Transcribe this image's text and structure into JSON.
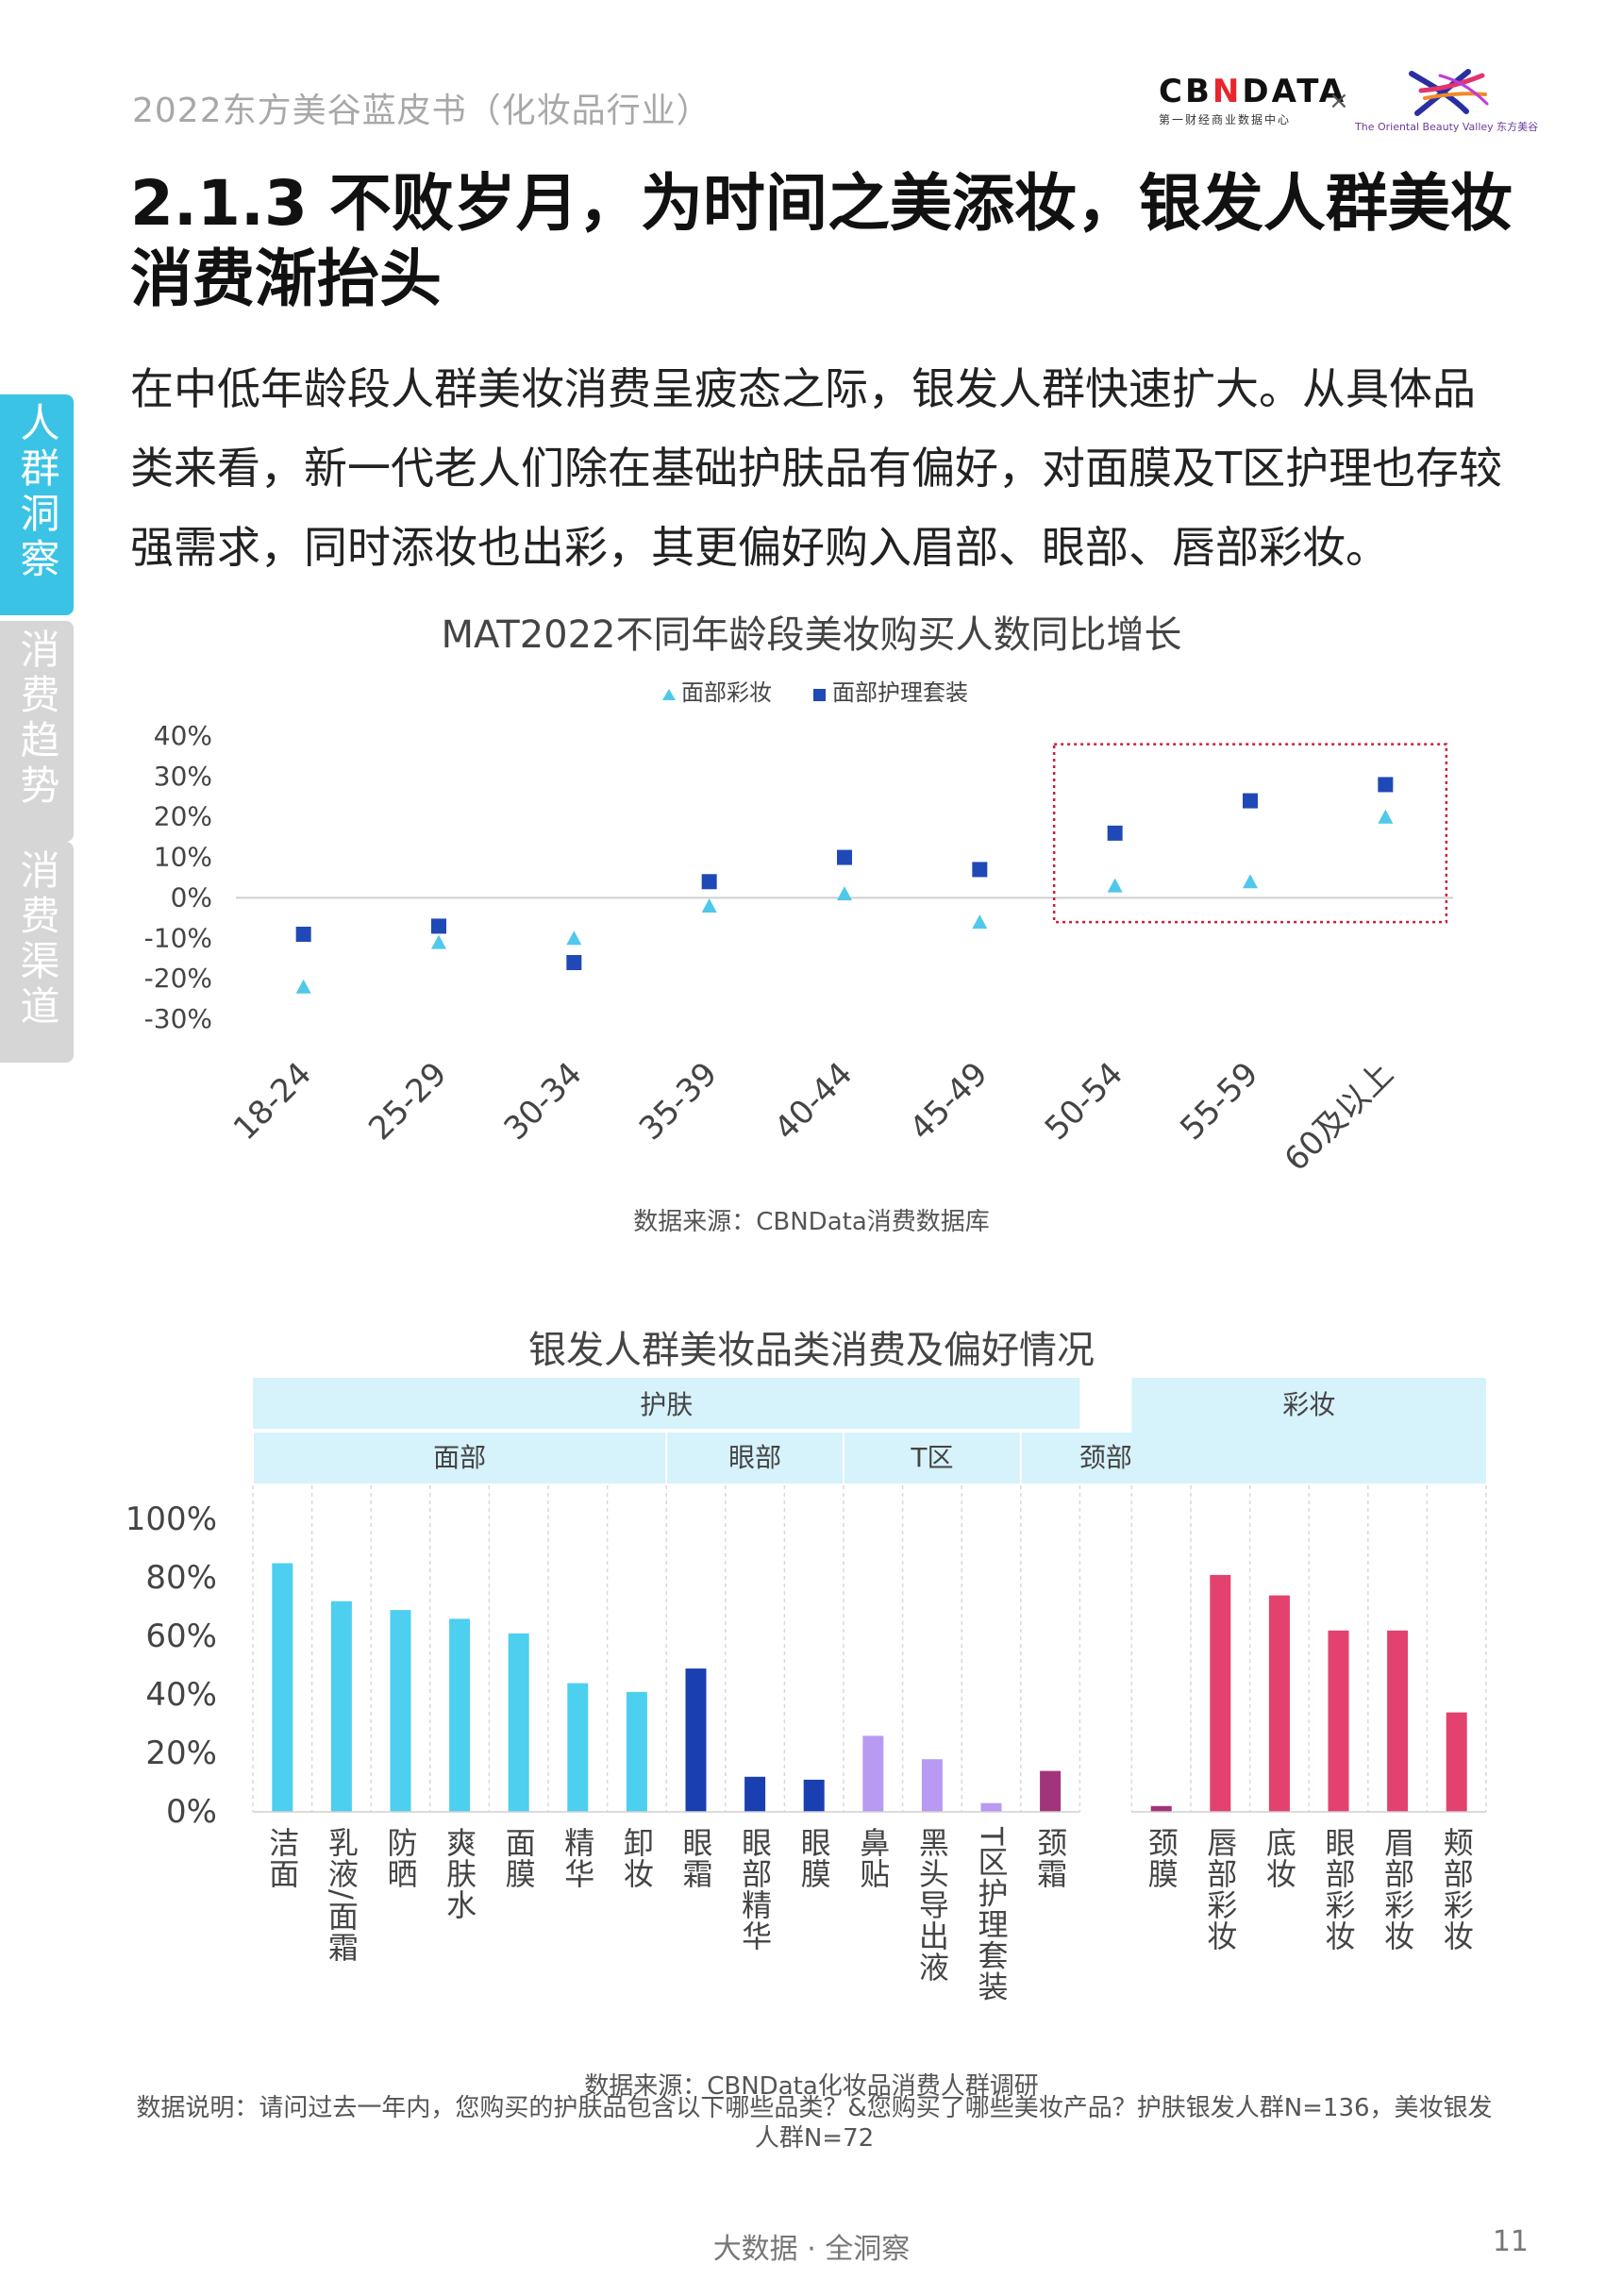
{
  "header": {
    "title": "2022东方美谷蓝皮书（化妆品行业）",
    "logo_cbn_word_a": "CB",
    "logo_cbn_word_x": "N",
    "logo_cbn_word_b": "DATA",
    "logo_cbn_sub": "第一财经商业数据中心",
    "logo_times": "×",
    "logo_dfmg_text": "The Oriental Beauty Valley 东方美谷"
  },
  "side_tabs": [
    {
      "label": "人群洞察",
      "active": true
    },
    {
      "label": "消费趋势",
      "active": false
    },
    {
      "label": "消费渠道",
      "active": false
    }
  ],
  "page_title": "2.1.3 不败岁月，为时间之美添妆，银发人群美妆消费渐抬头",
  "intro": "在中低年龄段人群美妆消费呈疲态之际，银发人群快速扩大。从具体品类来看，新一代老人们除在基础护肤品有偏好，对面膜及T区护理也存较强需求，同时添妆也出彩，其更偏好购入眉部、眼部、唇部彩妆。",
  "chart_data": [
    {
      "type": "scatter",
      "title": "MAT2022不同年龄段美妆购买人数同比增长",
      "categories": [
        "18-24",
        "25-29",
        "30-34",
        "35-39",
        "40-44",
        "45-49",
        "50-54",
        "55-59",
        "60及以上"
      ],
      "series": [
        {
          "name": "面部彩妆",
          "marker": "triangle",
          "color": "#4fc8ea",
          "values": [
            -22,
            -11,
            -10,
            -2,
            1,
            -6,
            3,
            4,
            20
          ]
        },
        {
          "name": "面部护理套装",
          "marker": "square",
          "color": "#1f49b6",
          "values": [
            -9,
            -7,
            -16,
            4,
            10,
            7,
            16,
            24,
            28
          ]
        }
      ],
      "yticks": [
        "40%",
        "30%",
        "20%",
        "10%",
        "0%",
        "-10%",
        "-20%",
        "-30%"
      ],
      "ylim": [
        -30,
        40
      ],
      "legend": "top",
      "highlight_categories": [
        "50-54",
        "55-59",
        "60及以上"
      ],
      "source": "数据来源：CBNData消费数据库"
    },
    {
      "type": "bar",
      "title": "银发人群美妆品类消费及偏好情况",
      "groups_level1": [
        {
          "label": "护肤",
          "categories": 14
        },
        {
          "label": "彩妆",
          "categories": 5
        }
      ],
      "groups_level2": [
        {
          "label": "面部",
          "categories": 7
        },
        {
          "label": "眼部",
          "categories": 3
        },
        {
          "label": "T区",
          "categories": 3
        },
        {
          "label": "颈部",
          "categories": 2
        }
      ],
      "categories": [
        "洁面",
        "乳液/面霜",
        "防晒",
        "爽肤水",
        "面膜",
        "精华",
        "卸妆",
        "眼霜",
        "眼部精华",
        "眼膜",
        "鼻贴",
        "黑头导出液",
        "T区护理套装",
        "颈霜",
        "颈膜",
        "唇部彩妆",
        "底妆",
        "眼部彩妆",
        "眉部彩妆",
        "颊部彩妆"
      ],
      "values": [
        85,
        72,
        69,
        66,
        61,
        44,
        41,
        49,
        12,
        11,
        26,
        18,
        3,
        14,
        2,
        81,
        74,
        62,
        62,
        34
      ],
      "colors": [
        "#4dcff0",
        "#4dcff0",
        "#4dcff0",
        "#4dcff0",
        "#4dcff0",
        "#4dcff0",
        "#4dcff0",
        "#1a3fb0",
        "#1a3fb0",
        "#1a3fb0",
        "#b89af2",
        "#b89af2",
        "#b89af2",
        "#a1347a",
        "#a1347a",
        "#e2426d",
        "#e2426d",
        "#e2426d",
        "#e2426d",
        "#e2426d"
      ],
      "yticks": [
        "100%",
        "80%",
        "60%",
        "40%",
        "20%",
        "0%"
      ],
      "ylim": [
        0,
        100
      ],
      "source": "数据来源：CBNData化妆品消费人群调研",
      "note": "数据说明：请问过去一年内，您购买的护肤品包含以下哪些品类？&您购买了哪些美妆产品？护肤银发人群N=136，美妆银发人群N=72"
    }
  ],
  "footer": {
    "center": "大数据 · 全洞察",
    "page_number": "11"
  },
  "watermark": "CBNData"
}
